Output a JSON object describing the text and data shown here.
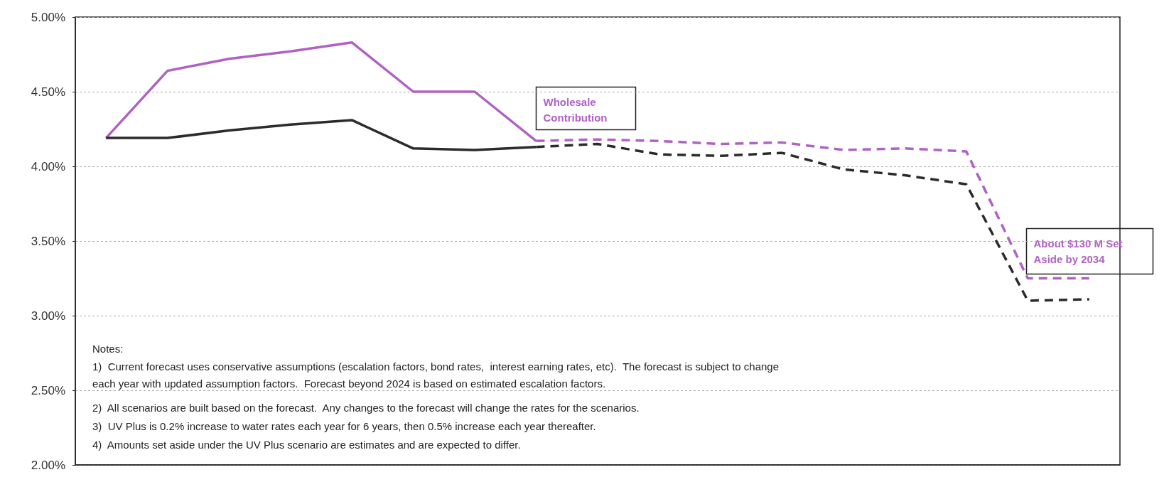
{
  "chart_data": {
    "type": "line",
    "categories": [
      null,
      null,
      null,
      null,
      null,
      null,
      null,
      null,
      null,
      null,
      null,
      null,
      null,
      null,
      null,
      null,
      null
    ],
    "series": [
      {
        "color": "#b062c4",
        "line_style": "solid",
        "values": [
          4.19,
          4.64,
          4.72,
          4.77,
          4.83,
          4.5,
          4.5,
          4.17,
          null,
          null,
          null,
          null,
          null,
          null,
          null,
          null,
          null
        ]
      },
      {
        "color": "#2b2b2b",
        "line_style": "solid",
        "values": [
          4.19,
          4.19,
          4.24,
          4.28,
          4.31,
          4.12,
          4.11,
          4.13,
          null,
          null,
          null,
          null,
          null,
          null,
          null,
          null,
          null
        ]
      },
      {
        "color": "#b062c4",
        "line_style": "dashed",
        "values": [
          null,
          null,
          null,
          null,
          null,
          null,
          null,
          4.17,
          4.18,
          4.17,
          4.15,
          4.16,
          4.11,
          4.12,
          4.1,
          3.25,
          3.25
        ]
      },
      {
        "color": "#2b2b2b",
        "line_style": "dashed",
        "values": [
          null,
          null,
          null,
          null,
          null,
          null,
          null,
          4.13,
          4.15,
          4.08,
          4.07,
          4.09,
          3.98,
          3.94,
          3.88,
          3.1,
          3.11
        ]
      }
    ],
    "ylim": [
      2,
      5
    ],
    "yticks": [
      {
        "value": 2,
        "label": "2.00%"
      },
      {
        "value": 2.5,
        "label": "2.50%"
      },
      {
        "value": 3,
        "label": "3.00%"
      },
      {
        "value": 3.5,
        "label": "3.50%"
      },
      {
        "value": 4,
        "label": "4.00%"
      },
      {
        "value": 4.5,
        "label": "4.50%"
      },
      {
        "value": 5,
        "label": "5.00%"
      }
    ],
    "grid": "y",
    "marker": "none",
    "annotations": [
      "Wholesale Contribution",
      "About $130 M Set Aside by 2034",
      "Notes:",
      "1)  Current forecast uses conservative assumptions (escalation factors, bond rates,  interest earning rates, etc).  The forecast is subject to change each year with updated assumption factors.  Forecast beyond 2024 is based on estimated escalation factors.",
      "2)  All scenarios are built based on the forecast.  Any changes to the forecast will change the rates for the scenarios.",
      "3)  UV Plus is 0.2% increase to water rates each year for 6 years, then 0.5% increase each year thereafter.",
      "4)  Amounts set aside under the UV Plus scenario are estimates and are expected to differ."
    ]
  }
}
